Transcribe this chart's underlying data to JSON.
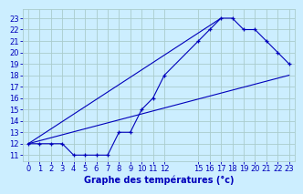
{
  "title": "Graphe des températures (°c)",
  "bg_color": "#cceeff",
  "grid_color": "#aacccc",
  "line_color": "#0000bb",
  "xlim": [
    -0.5,
    23.5
  ],
  "ylim": [
    10.5,
    23.8
  ],
  "xtick_vals": [
    0,
    1,
    2,
    3,
    4,
    5,
    6,
    7,
    8,
    9,
    10,
    11,
    12,
    15,
    16,
    17,
    18,
    19,
    20,
    21,
    22,
    23
  ],
  "xtick_labels": [
    "0",
    "1",
    "2",
    "3",
    "4",
    "5",
    "6",
    "7",
    "8",
    "9",
    "10",
    "11",
    "12",
    "15",
    "16",
    "17",
    "18",
    "19",
    "20",
    "21",
    "22",
    "23"
  ],
  "ytick_vals": [
    11,
    12,
    13,
    14,
    15,
    16,
    17,
    18,
    19,
    20,
    21,
    22,
    23
  ],
  "ytick_labels": [
    "11",
    "12",
    "13",
    "14",
    "15",
    "16",
    "17",
    "18",
    "19",
    "20",
    "21",
    "22",
    "23"
  ],
  "curve_x": [
    0,
    1,
    2,
    3,
    4,
    5,
    6,
    7,
    8,
    9,
    10,
    11,
    12,
    15,
    16,
    17,
    18,
    19,
    20,
    21,
    22,
    23
  ],
  "curve_y": [
    12,
    12,
    12,
    12,
    11,
    11,
    11,
    11,
    13,
    13,
    15,
    16,
    18,
    21,
    22,
    23,
    23,
    22,
    22,
    21,
    20,
    19
  ],
  "line1_x": [
    0,
    23
  ],
  "line1_y": [
    12,
    18
  ],
  "line2_x": [
    0,
    17
  ],
  "line2_y": [
    12,
    23
  ],
  "tick_fontsize": 6,
  "xlabel_fontsize": 7,
  "xlabel_bold": true
}
